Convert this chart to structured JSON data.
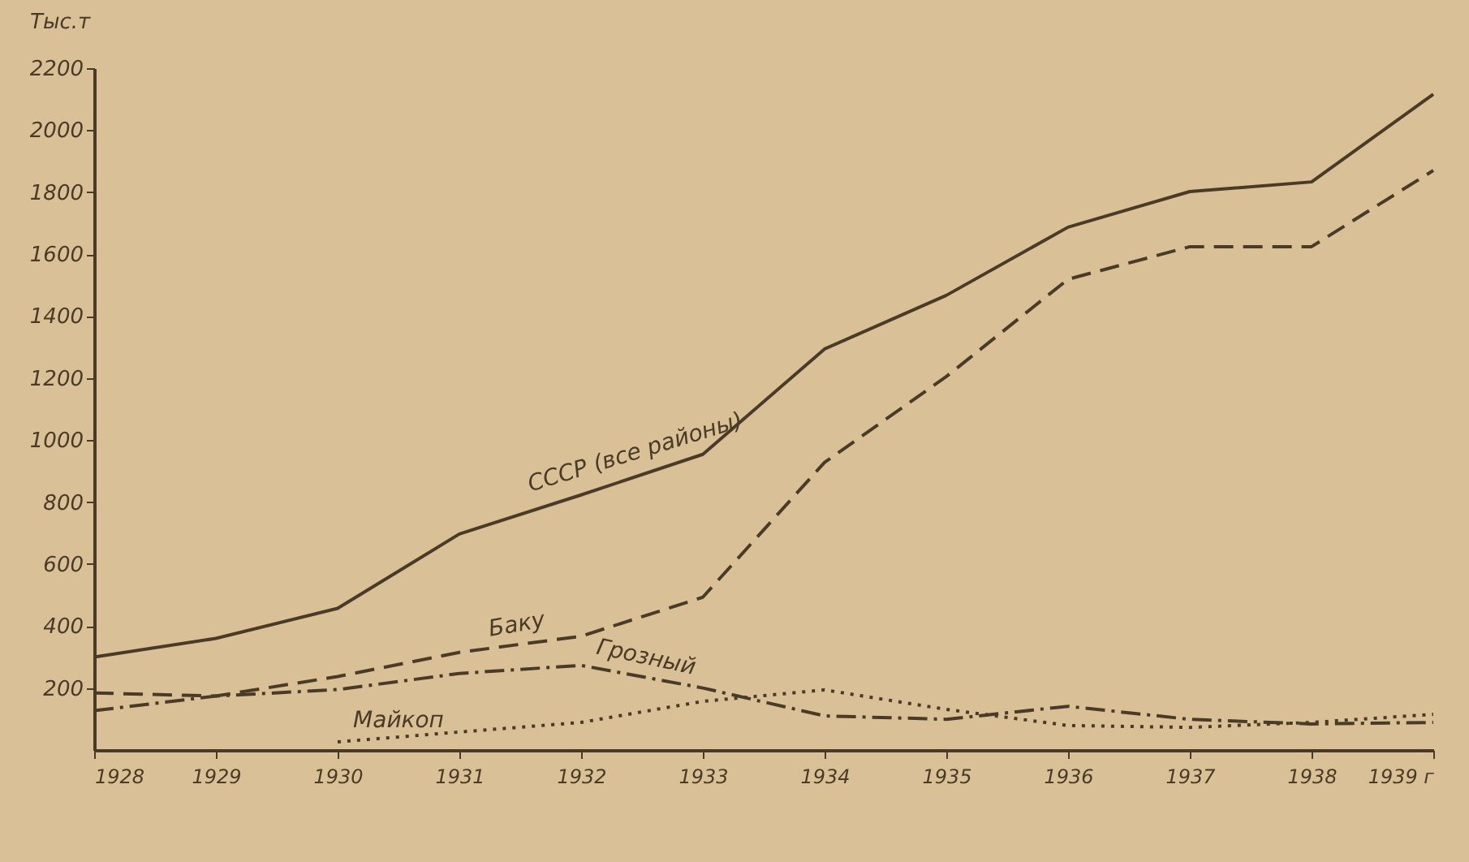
{
  "chart_data": {
    "type": "line",
    "ylabel": "Тыс.т",
    "x": [
      1928,
      1929,
      1930,
      1931,
      1932,
      1933,
      1934,
      1935,
      1936,
      1937,
      1938,
      1939
    ],
    "xlim": [
      1928,
      1939
    ],
    "xticks": [
      1928,
      1929,
      1930,
      1931,
      1932,
      1933,
      1934,
      1935,
      1936,
      1937,
      1938,
      {
        "value": 1939,
        "label": "1939 г"
      }
    ],
    "ylim": [
      0,
      2200
    ],
    "yticks": [
      200,
      400,
      600,
      800,
      1000,
      1200,
      1400,
      1600,
      1800,
      2000,
      2200
    ],
    "grid": false,
    "series": [
      {
        "name": "СССР (все районы)",
        "color": "#4a3b28",
        "line_style": "solid",
        "values": [
          300,
          360,
          457,
          697,
          823,
          954,
          1294,
          1467,
          1687,
          1802,
          1833,
          2116
        ]
      },
      {
        "name": "Баку",
        "color": "#4a3b28",
        "line_style": "dashed",
        "values": [
          184,
          174,
          237,
          315,
          367,
          493,
          928,
          1205,
          1519,
          1624,
          1624,
          1870
        ]
      },
      {
        "name": "Грозный",
        "color": "#4a3b28",
        "line_style": "dashdot",
        "values": [
          127,
          174,
          195,
          247,
          273,
          200,
          110,
          99,
          141,
          99,
          84,
          89
        ]
      },
      {
        "name": "Майкоп",
        "color": "#4a3b28",
        "line_style": "dotted",
        "values": [
          null,
          null,
          26,
          58,
          89,
          157,
          194,
          131,
          79,
          73,
          89,
          115
        ]
      }
    ]
  }
}
